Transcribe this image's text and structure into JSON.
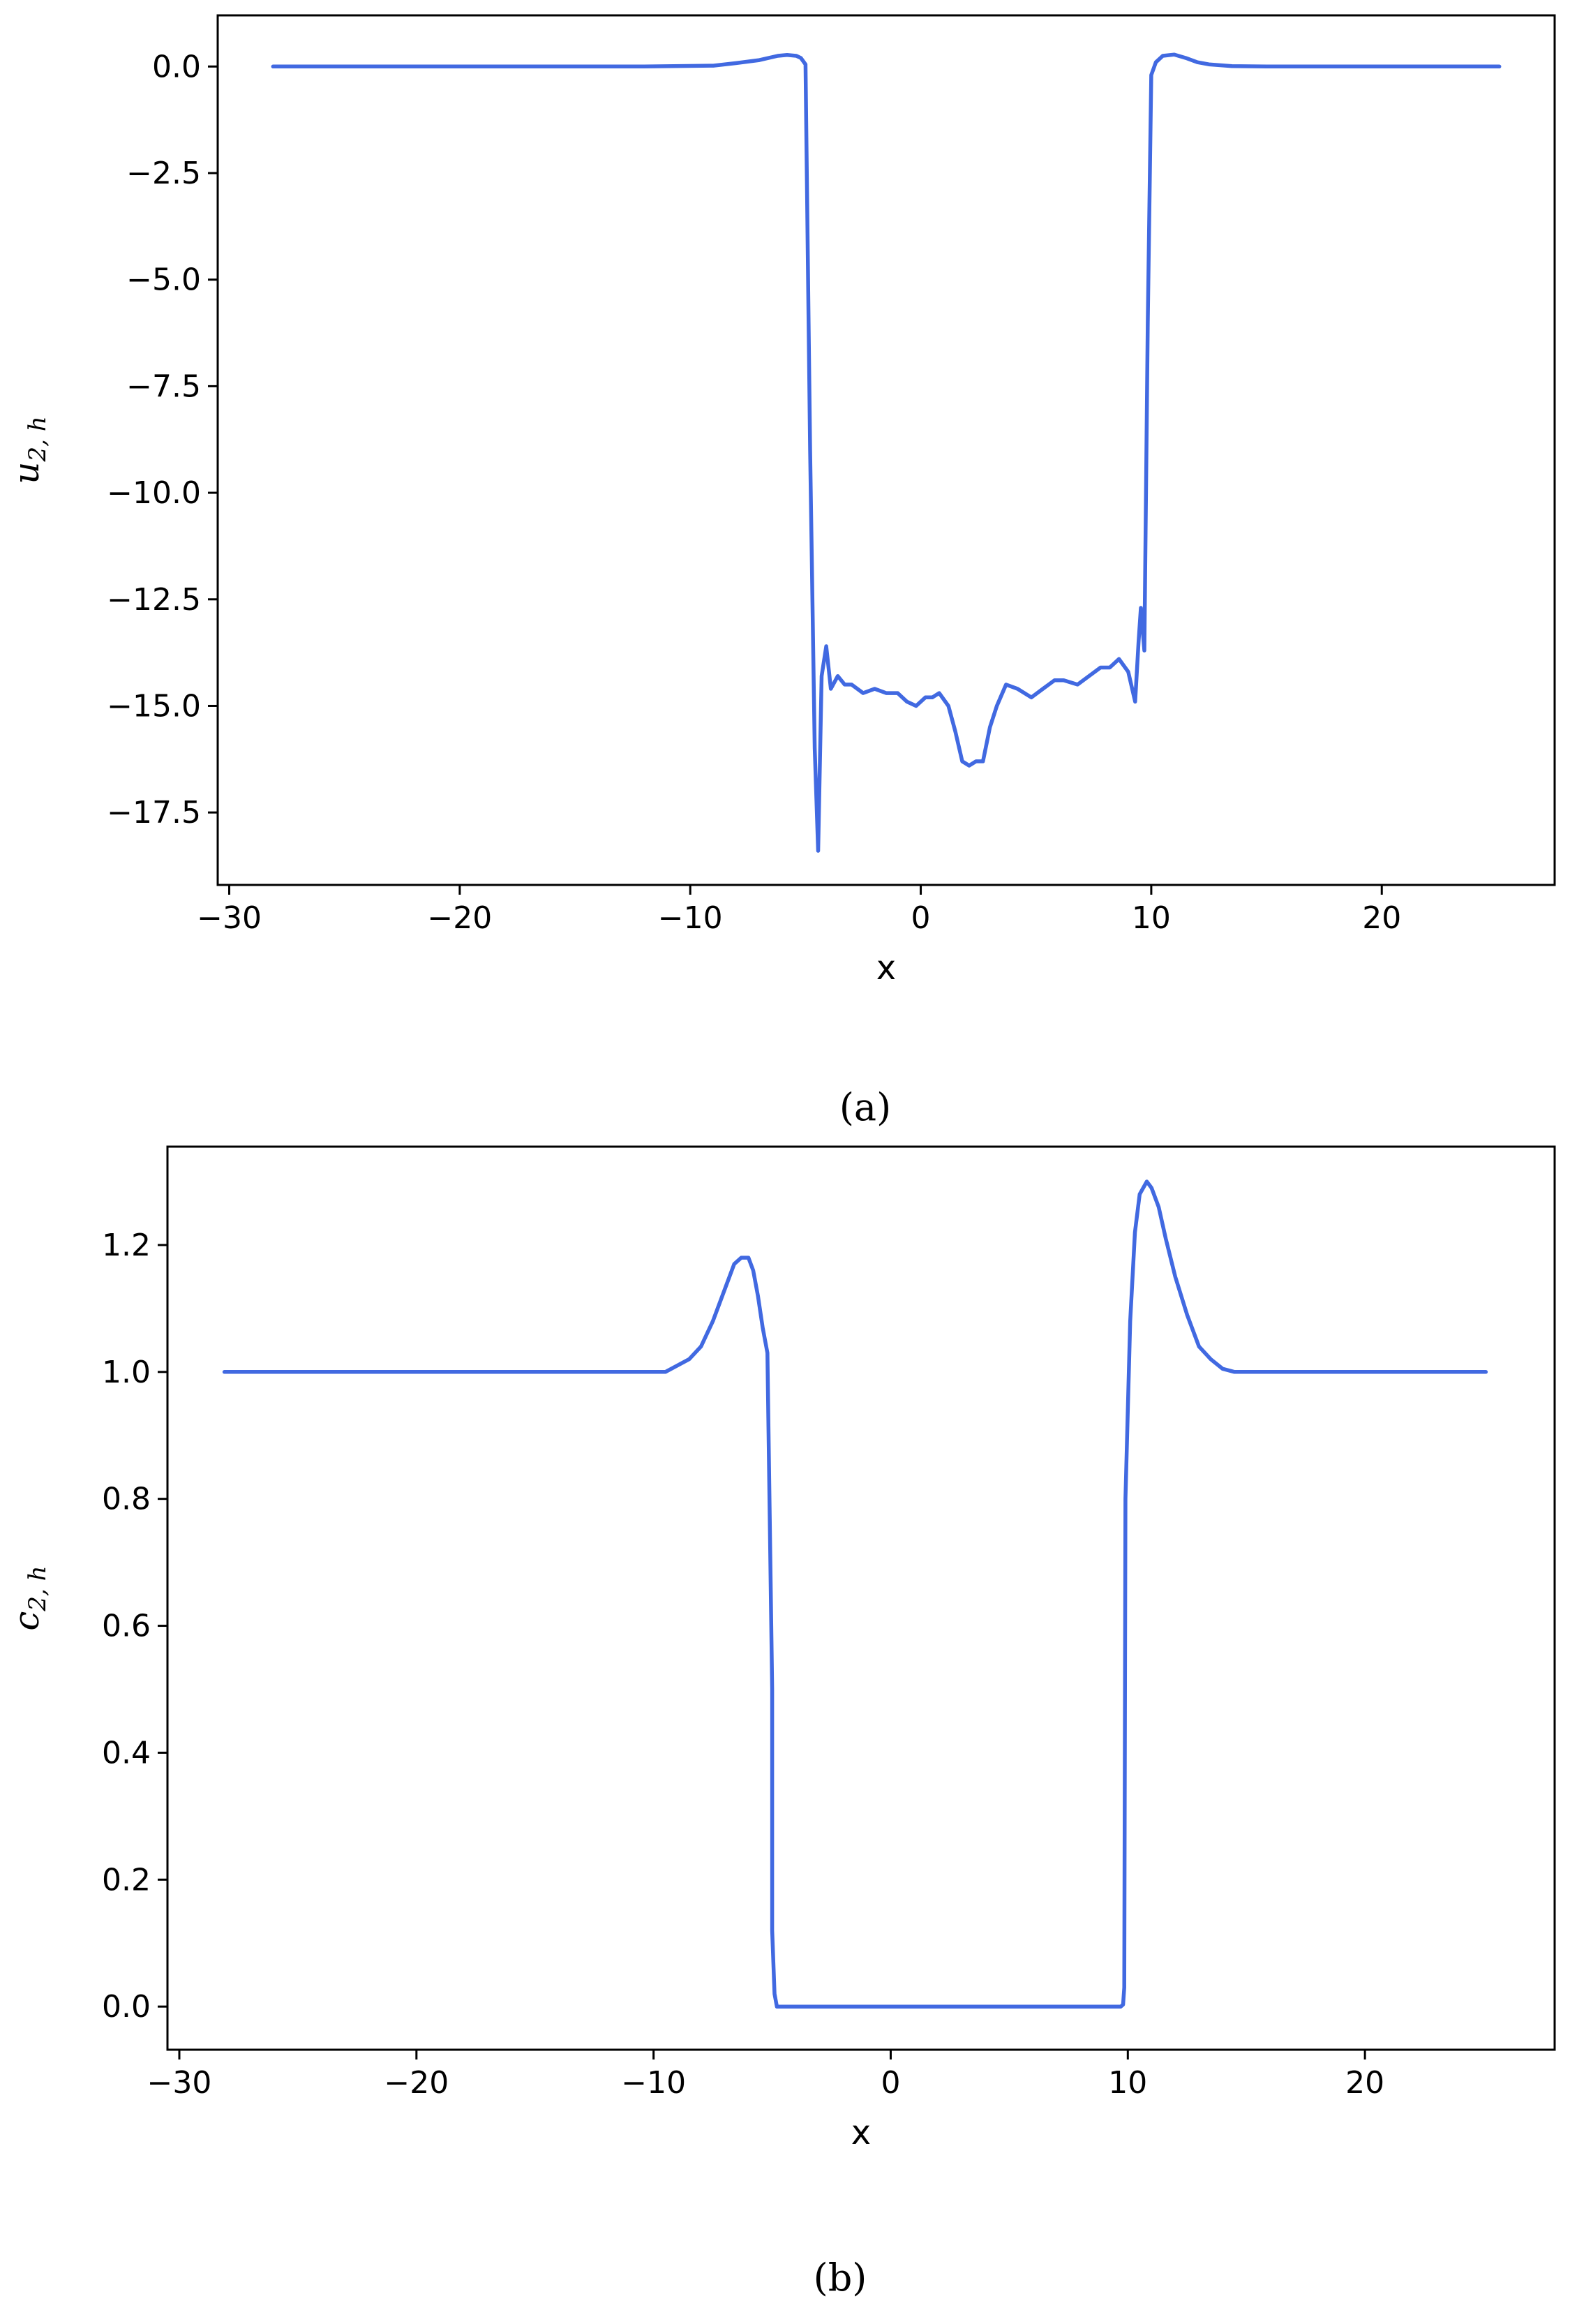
{
  "chart_data": [
    {
      "type": "line",
      "caption": "(a)",
      "xlabel": "x",
      "ylabel_main": "u",
      "ylabel_sub": "2, h",
      "xlim": [
        -30.5,
        27.5
      ],
      "ylim": [
        -19.2,
        1.2
      ],
      "xticks": [
        -30,
        -20,
        -10,
        0,
        10,
        20
      ],
      "xtick_labels": [
        "−30",
        "−20",
        "−10",
        "0",
        "10",
        "20"
      ],
      "yticks": [
        0.0,
        -2.5,
        -5.0,
        -7.5,
        -10.0,
        -12.5,
        -15.0,
        -17.5
      ],
      "ytick_labels": [
        "0.0",
        "−2.5",
        "−5.0",
        "−7.5",
        "−10.0",
        "−12.5",
        "−15.0",
        "−17.5"
      ],
      "grid": false,
      "line_color": "#4169e1",
      "series": [
        {
          "x": [
            -28.1,
            -20,
            -12,
            -9,
            -8,
            -7,
            -6.2,
            -5.8,
            -5.4,
            -5.2,
            -5.0,
            -4.8,
            -4.6,
            -4.45,
            -4.3,
            -4.1,
            -3.9,
            -3.6,
            -3.3,
            -3.0,
            -2.5,
            -2.0,
            -1.5,
            -1.0,
            -0.6,
            -0.2,
            0.2,
            0.5,
            0.8,
            1.2,
            1.5,
            1.8,
            2.1,
            2.4,
            2.7,
            3.0,
            3.3,
            3.7,
            4.2,
            4.8,
            5.3,
            5.8,
            6.2,
            6.8,
            7.3,
            7.8,
            8.2,
            8.6,
            9.0,
            9.3,
            9.45,
            9.55,
            9.7,
            9.85,
            10.0,
            10.2,
            10.5,
            11.0,
            11.5,
            12.0,
            12.5,
            13.5,
            15,
            18,
            25.1
          ],
          "y": [
            0.0,
            0.0,
            0.0,
            0.02,
            0.08,
            0.15,
            0.25,
            0.27,
            0.25,
            0.2,
            0.05,
            -9.0,
            -16.0,
            -18.4,
            -14.3,
            -13.6,
            -14.6,
            -14.3,
            -14.5,
            -14.5,
            -14.7,
            -14.6,
            -14.7,
            -14.7,
            -14.9,
            -15.0,
            -14.8,
            -14.8,
            -14.7,
            -15.0,
            -15.6,
            -16.3,
            -16.4,
            -16.3,
            -16.3,
            -15.5,
            -15.0,
            -14.5,
            -14.6,
            -14.8,
            -14.6,
            -14.4,
            -14.4,
            -14.5,
            -14.3,
            -14.1,
            -14.1,
            -13.9,
            -14.2,
            -14.9,
            -13.5,
            -12.7,
            -13.7,
            -6.0,
            -0.2,
            0.1,
            0.25,
            0.28,
            0.2,
            0.1,
            0.05,
            0.01,
            0.0,
            0.0,
            0.0
          ]
        }
      ]
    },
    {
      "type": "line",
      "caption": "(b)",
      "xlabel": "x",
      "ylabel_main": "c",
      "ylabel_sub": "2, h",
      "xlim": [
        -30.5,
        28.0
      ],
      "ylim": [
        -0.068,
        1.355
      ],
      "xticks": [
        -30,
        -20,
        -10,
        0,
        10,
        20
      ],
      "xtick_labels": [
        "−30",
        "−20",
        "−10",
        "0",
        "10",
        "20"
      ],
      "yticks": [
        0.0,
        0.2,
        0.4,
        0.6,
        0.8,
        1.0,
        1.2
      ],
      "ytick_labels": [
        "0.0",
        "0.2",
        "0.4",
        "0.6",
        "0.8",
        "1.0",
        "1.2"
      ],
      "grid": false,
      "line_color": "#4169e1",
      "series": [
        {
          "x": [
            -28.1,
            -20,
            -12,
            -10.5,
            -9.5,
            -9.0,
            -8.5,
            -8.0,
            -7.5,
            -7.0,
            -6.6,
            -6.3,
            -6.0,
            -5.8,
            -5.6,
            -5.4,
            -5.2,
            -5.0,
            -5.0,
            -4.9,
            -4.8,
            -4.6,
            0,
            5,
            9.7,
            9.8,
            9.85,
            9.9,
            10.1,
            10.3,
            10.5,
            10.8,
            11.0,
            11.3,
            11.6,
            12.0,
            12.5,
            13.0,
            13.5,
            14.0,
            14.5,
            15.0,
            16.0,
            18,
            25.1
          ],
          "y": [
            1.0,
            1.0,
            1.0,
            1.0,
            1.0,
            1.01,
            1.02,
            1.04,
            1.08,
            1.13,
            1.17,
            1.18,
            1.18,
            1.16,
            1.12,
            1.07,
            1.03,
            0.5,
            0.12,
            0.02,
            0.0,
            0.0,
            0.0,
            0.0,
            0.0,
            0.003,
            0.03,
            0.8,
            1.08,
            1.22,
            1.28,
            1.3,
            1.29,
            1.26,
            1.21,
            1.15,
            1.09,
            1.04,
            1.02,
            1.005,
            1.0,
            1.0,
            1.0,
            1.0,
            1.0
          ]
        }
      ]
    }
  ]
}
